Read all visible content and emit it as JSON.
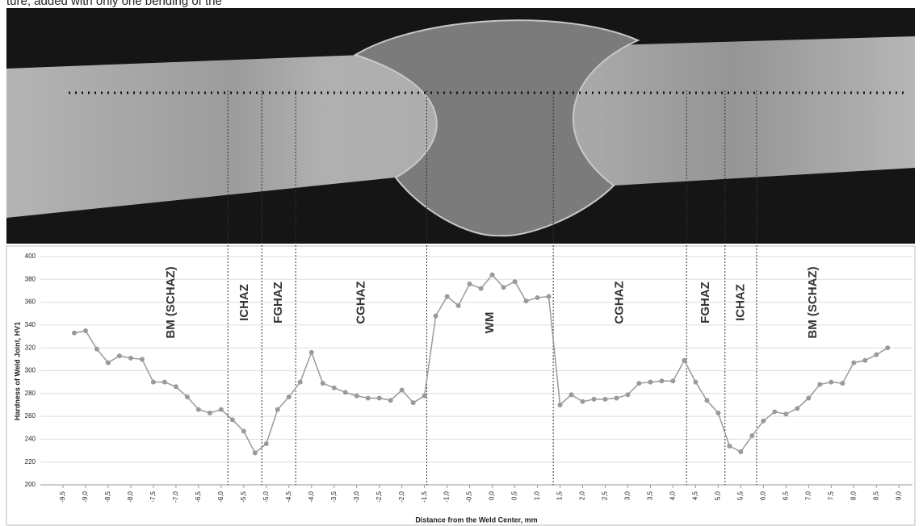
{
  "text_fragment": "ture, added with only one bending of the",
  "chart_data": {
    "type": "line",
    "y_label": "Hardness of Weld Joint, HV1",
    "x_label": "Distance from the Weld Center, mm",
    "x": [
      -9.25,
      -9.0,
      -8.75,
      -8.5,
      -8.25,
      -8.0,
      -7.75,
      -7.5,
      -7.25,
      -7.0,
      -6.75,
      -6.5,
      -6.25,
      -6.0,
      -5.75,
      -5.5,
      -5.25,
      -5.0,
      -4.75,
      -4.5,
      -4.25,
      -4.0,
      -3.75,
      -3.5,
      -3.25,
      -3.0,
      -2.75,
      -2.5,
      -2.25,
      -2.0,
      -1.75,
      -1.5,
      -1.25,
      -1.0,
      -0.75,
      -0.5,
      -0.25,
      0.0,
      0.25,
      0.5,
      0.75,
      1.0,
      1.25,
      1.5,
      1.75,
      2.0,
      2.25,
      2.5,
      2.75,
      3.0,
      3.25,
      3.5,
      3.75,
      4.0,
      4.25,
      4.5,
      4.75,
      5.0,
      5.25,
      5.5,
      5.75,
      6.0,
      6.25,
      6.5,
      6.75,
      7.0,
      7.25,
      7.5,
      7.75,
      8.0,
      8.25,
      8.5,
      8.75
    ],
    "series": [
      {
        "color": "#9a9a9a",
        "values": [
          333,
          335,
          319,
          307,
          313,
          311,
          310,
          290,
          290,
          286,
          277,
          266,
          263,
          266,
          257,
          247,
          228,
          236,
          266,
          277,
          290,
          316,
          289,
          285,
          281,
          278,
          276,
          276,
          274,
          283,
          272,
          278,
          348,
          365,
          357,
          376,
          372,
          384,
          373,
          378,
          361,
          364,
          365,
          270,
          279,
          273,
          275,
          275,
          276,
          279,
          289,
          290,
          291,
          291,
          309,
          290,
          274,
          263,
          234,
          229,
          243,
          256,
          264,
          262,
          267,
          276,
          288,
          290,
          289,
          307,
          309,
          314,
          320
        ]
      }
    ],
    "zone_boundaries": [
      -5.85,
      -5.1,
      -4.35,
      -1.45,
      1.35,
      4.3,
      5.15,
      5.85
    ],
    "zones": [
      "BM (SCHAZ)",
      "ICHAZ",
      "FGHAZ",
      "CGHAZ",
      "WM",
      "CGHAZ",
      "FGHAZ",
      "ICHAZ",
      "BM (SCHAZ)"
    ],
    "xlim": [
      -10,
      9.3
    ],
    "ylim": [
      200,
      400
    ],
    "yticks": [
      200,
      220,
      240,
      260,
      280,
      300,
      320,
      340,
      360,
      380,
      400
    ],
    "xticks": [
      {
        "value": -9.5,
        "label": "-9,5"
      },
      {
        "value": -9.0,
        "label": "-9,0"
      },
      {
        "value": -8.5,
        "label": "-8,5"
      },
      {
        "value": -8.0,
        "label": "-8,0"
      },
      {
        "value": -7.5,
        "label": "-7,5"
      },
      {
        "value": -7.0,
        "label": "-7,0"
      },
      {
        "value": -6.5,
        "label": "-6,5"
      },
      {
        "value": -6.0,
        "label": "-6,0"
      },
      {
        "value": -5.5,
        "label": "-5,5"
      },
      {
        "value": -5.0,
        "label": "-5,0"
      },
      {
        "value": -4.5,
        "label": "-4,5"
      },
      {
        "value": -4.0,
        "label": "-4,0"
      },
      {
        "value": -3.5,
        "label": "-3,5"
      },
      {
        "value": -3.0,
        "label": "-3,0"
      },
      {
        "value": -2.5,
        "label": "-2,5"
      },
      {
        "value": -2.0,
        "label": "-2,0"
      },
      {
        "value": -1.5,
        "label": "-1,5"
      },
      {
        "value": -1.0,
        "label": "-1,0"
      },
      {
        "value": -0.5,
        "label": "-0,5"
      },
      {
        "value": 0.0,
        "label": "0,0"
      },
      {
        "value": 0.5,
        "label": "0,5"
      },
      {
        "value": 1.0,
        "label": "1,0"
      },
      {
        "value": 1.5,
        "label": "1,5"
      },
      {
        "value": 2.0,
        "label": "2,0"
      },
      {
        "value": 2.5,
        "label": "2,5"
      },
      {
        "value": 3.0,
        "label": "3,0"
      },
      {
        "value": 3.5,
        "label": "3,5"
      },
      {
        "value": 4.0,
        "label": "4,0"
      },
      {
        "value": 4.5,
        "label": "4,5"
      },
      {
        "value": 5.0,
        "label": "5,0"
      },
      {
        "value": 5.5,
        "label": "5,5"
      },
      {
        "value": 6.0,
        "label": "6,0"
      },
      {
        "value": 6.5,
        "label": "6,5"
      },
      {
        "value": 7.0,
        "label": "7,0"
      },
      {
        "value": 7.5,
        "label": "7,5"
      },
      {
        "value": 8.0,
        "label": "8,0"
      },
      {
        "value": 8.5,
        "label": "8,5"
      },
      {
        "value": 9.0,
        "label": "9,0"
      }
    ],
    "grid": true
  }
}
